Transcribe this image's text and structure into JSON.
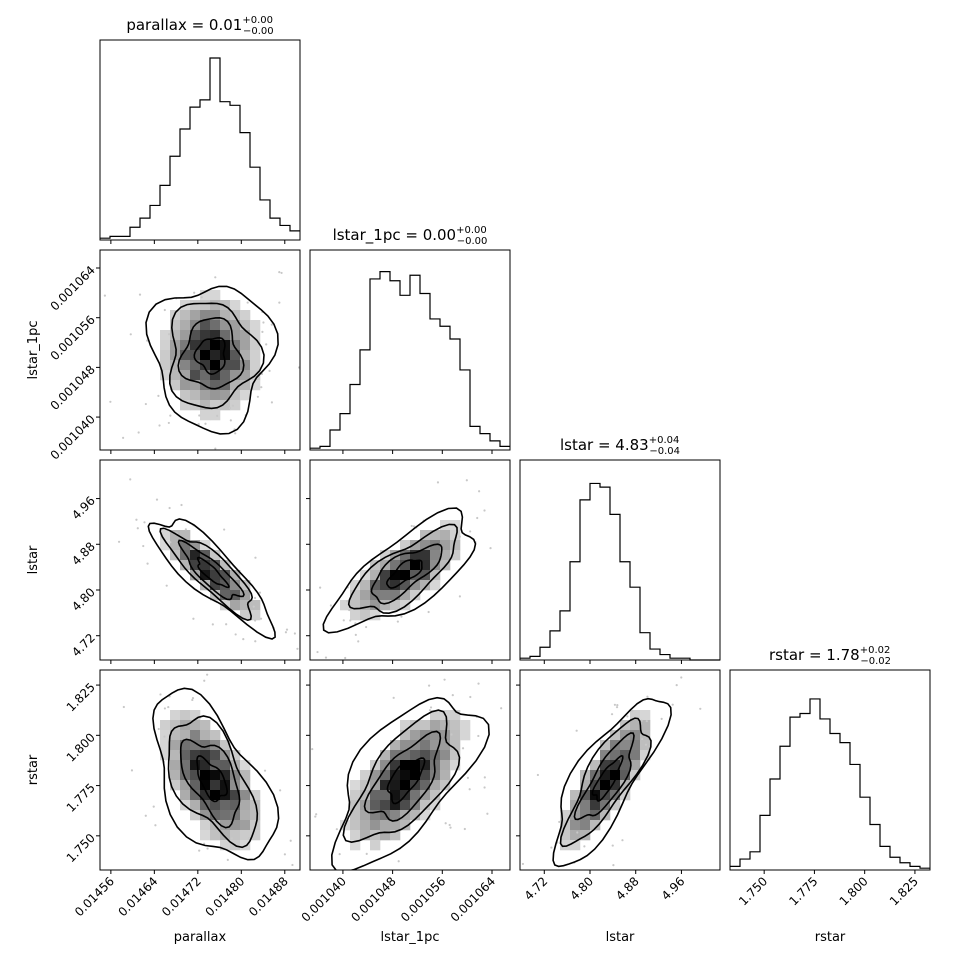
{
  "chart_data": {
    "type": "corner",
    "parameters": [
      "parallax",
      "lstar_1pc",
      "lstar",
      "rstar"
    ],
    "titles": [
      {
        "param": "parallax",
        "median": "0.01",
        "plus": "+0.00",
        "minus": "−0.00"
      },
      {
        "param": "lstar_1pc",
        "median": "0.00",
        "plus": "+0.00",
        "minus": "−0.00"
      },
      {
        "param": "lstar",
        "median": "4.83",
        "plus": "+0.04",
        "minus": "−0.04"
      },
      {
        "param": "rstar",
        "median": "1.78",
        "plus": "+0.02",
        "minus": "−0.02"
      }
    ],
    "axes": {
      "parallax": {
        "range": [
          0.01454,
          0.014908
        ],
        "ticks": [
          0.01456,
          0.01464,
          0.01472,
          0.0148,
          0.01488
        ],
        "tick_labels": [
          "0.01456",
          "0.01464",
          "0.01472",
          "0.01480",
          "0.01488"
        ]
      },
      "lstar_1pc": {
        "range": [
          0.0010347,
          0.0010669
        ],
        "ticks": [
          0.00104,
          0.001048,
          0.001056,
          0.001064
        ],
        "tick_labels": [
          "0.001040",
          "0.001048",
          "0.001056",
          "0.001064"
        ]
      },
      "lstar": {
        "range": [
          4.6775,
          5.0275
        ],
        "ticks": [
          4.72,
          4.8,
          4.88,
          4.96
        ],
        "tick_labels": [
          "4.72",
          "4.80",
          "4.88",
          "4.96"
        ]
      },
      "rstar": {
        "range": [
          1.733,
          1.8325
        ],
        "ticks": [
          1.75,
          1.775,
          1.8,
          1.825
        ],
        "tick_labels": [
          "1.750",
          "1.775",
          "1.800",
          "1.825"
        ]
      }
    },
    "histograms": {
      "parallax": [
        0.01,
        0.02,
        0.02,
        0.07,
        0.12,
        0.19,
        0.3,
        0.46,
        0.61,
        0.73,
        0.77,
        1.0,
        0.76,
        0.74,
        0.59,
        0.4,
        0.22,
        0.12,
        0.08,
        0.05
      ],
      "lstar_1pc": [
        0.01,
        0.02,
        0.11,
        0.2,
        0.36,
        0.55,
        0.94,
        0.98,
        0.93,
        0.85,
        0.96,
        0.86,
        0.72,
        0.68,
        0.61,
        0.44,
        0.13,
        0.09,
        0.05,
        0.02
      ],
      "lstar": [
        0.01,
        0.02,
        0.07,
        0.16,
        0.27,
        0.54,
        0.88,
        0.97,
        0.95,
        0.8,
        0.54,
        0.4,
        0.15,
        0.06,
        0.03,
        0.01,
        0.01,
        0.0,
        0.0,
        0.0
      ],
      "rstar": [
        0.02,
        0.06,
        0.1,
        0.3,
        0.5,
        0.68,
        0.84,
        0.86,
        0.94,
        0.83,
        0.75,
        0.7,
        0.58,
        0.4,
        0.25,
        0.13,
        0.07,
        0.04,
        0.02,
        0.01
      ]
    },
    "correlations": [
      {
        "x": "parallax",
        "y": "lstar_1pc",
        "rho": 0.0
      },
      {
        "x": "parallax",
        "y": "lstar",
        "rho": -0.85
      },
      {
        "x": "lstar_1pc",
        "y": "lstar",
        "rho": 0.72
      },
      {
        "x": "parallax",
        "y": "rstar",
        "rho": -0.55
      },
      {
        "x": "lstar_1pc",
        "y": "rstar",
        "rho": 0.62
      },
      {
        "x": "lstar",
        "y": "rstar",
        "rho": 0.8
      }
    ],
    "xlabels": [
      "parallax",
      "lstar_1pc",
      "lstar",
      "rstar"
    ],
    "ylabels": [
      "lstar_1pc",
      "lstar",
      "rstar"
    ]
  }
}
